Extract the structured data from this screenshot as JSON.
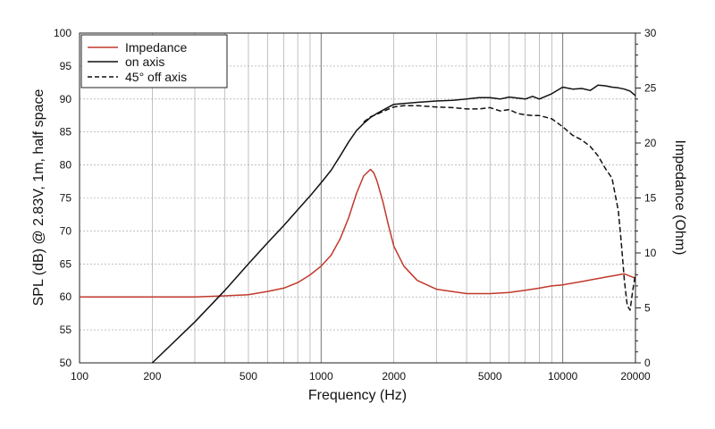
{
  "chart_data": {
    "type": "line",
    "title": "",
    "xlabel": "Frequency (Hz)",
    "ylabel": "SPL (dB) @ 2.83V, 1m, half space",
    "y2label": "Impedance (Ohm)",
    "xscale": "log",
    "xlim": [
      100,
      20000
    ],
    "ylim": [
      50,
      100
    ],
    "y2lim": [
      0,
      30
    ],
    "grid": true,
    "legend_position": "top-left",
    "x_tick_labels": [
      "100",
      "200",
      "500",
      "1000",
      "2000",
      "5000",
      "10000",
      "20000"
    ],
    "x_tick_values": [
      100,
      200,
      500,
      1000,
      2000,
      5000,
      10000,
      20000
    ],
    "y_tick_labels": [
      "100",
      "95",
      "90",
      "85",
      "80",
      "75",
      "70",
      "65",
      "60",
      "55",
      "50"
    ],
    "y_tick_values": [
      100,
      95,
      90,
      85,
      80,
      75,
      70,
      65,
      60,
      55,
      50
    ],
    "y2_tick_labels": [
      "30",
      "25",
      "20",
      "15",
      "10",
      "5",
      "0"
    ],
    "y2_tick_values": [
      30,
      25,
      20,
      15,
      10,
      5,
      0
    ],
    "series": [
      {
        "name": "Impedance",
        "axis": "right",
        "color": "#c0392b",
        "dash": "solid",
        "x": [
          100,
          200,
          300,
          400,
          500,
          600,
          700,
          800,
          900,
          1000,
          1100,
          1200,
          1300,
          1400,
          1500,
          1600,
          1650,
          1700,
          1800,
          1900,
          2000,
          2200,
          2500,
          3000,
          4000,
          5000,
          6000,
          7000,
          8000,
          9000,
          10000,
          12000,
          15000,
          18000,
          20000
        ],
        "y": [
          6.0,
          6.0,
          6.0,
          6.1,
          6.2,
          6.5,
          6.8,
          7.3,
          8.0,
          8.8,
          9.8,
          11.3,
          13.2,
          15.4,
          17.0,
          17.6,
          17.3,
          16.6,
          14.7,
          12.5,
          10.6,
          8.8,
          7.5,
          6.7,
          6.3,
          6.3,
          6.4,
          6.6,
          6.8,
          7.0,
          7.1,
          7.4,
          7.8,
          8.1,
          7.7
        ]
      },
      {
        "name": "on axis",
        "axis": "left",
        "color": "#111111",
        "dash": "solid",
        "x": [
          200,
          300,
          400,
          500,
          600,
          700,
          800,
          900,
          1000,
          1100,
          1200,
          1300,
          1400,
          1500,
          1600,
          1700,
          1800,
          2000,
          2500,
          3000,
          3500,
          4000,
          4500,
          5000,
          5500,
          6000,
          7000,
          7500,
          8000,
          9000,
          10000,
          11000,
          12000,
          13000,
          14000,
          15000,
          16000,
          17000,
          18000,
          19000,
          20000
        ],
        "y": [
          49.0,
          56.2,
          61.0,
          65.0,
          68.2,
          70.8,
          73.2,
          75.3,
          77.3,
          79.2,
          81.4,
          83.5,
          85.2,
          86.3,
          87.2,
          87.8,
          88.3,
          89.2,
          89.5,
          89.7,
          89.8,
          90.0,
          90.2,
          90.2,
          90.0,
          90.3,
          90.0,
          90.4,
          90.0,
          90.8,
          91.8,
          91.5,
          91.6,
          91.3,
          92.1,
          92.0,
          91.8,
          91.7,
          91.5,
          91.2,
          90.5
        ]
      },
      {
        "name": "45° off axis",
        "axis": "left",
        "color": "#111111",
        "dash": "dashed",
        "x": [
          1500,
          1600,
          1700,
          1800,
          2000,
          2200,
          2500,
          3000,
          3500,
          4000,
          4500,
          5000,
          5500,
          6000,
          6500,
          7000,
          7500,
          8000,
          9000,
          10000,
          11000,
          12000,
          13000,
          14000,
          15000,
          16000,
          17000,
          17500,
          18000,
          18500,
          19000,
          19500,
          20000
        ],
        "y": [
          86.5,
          87.3,
          87.7,
          88.1,
          88.8,
          89.0,
          89.0,
          88.8,
          88.7,
          88.5,
          88.5,
          88.7,
          88.2,
          88.4,
          87.8,
          87.6,
          87.5,
          87.5,
          87.0,
          85.8,
          84.5,
          83.8,
          82.8,
          81.4,
          79.5,
          78.0,
          73.0,
          68.0,
          62.5,
          58.7,
          58.0,
          61.0,
          63.5
        ]
      }
    ]
  }
}
